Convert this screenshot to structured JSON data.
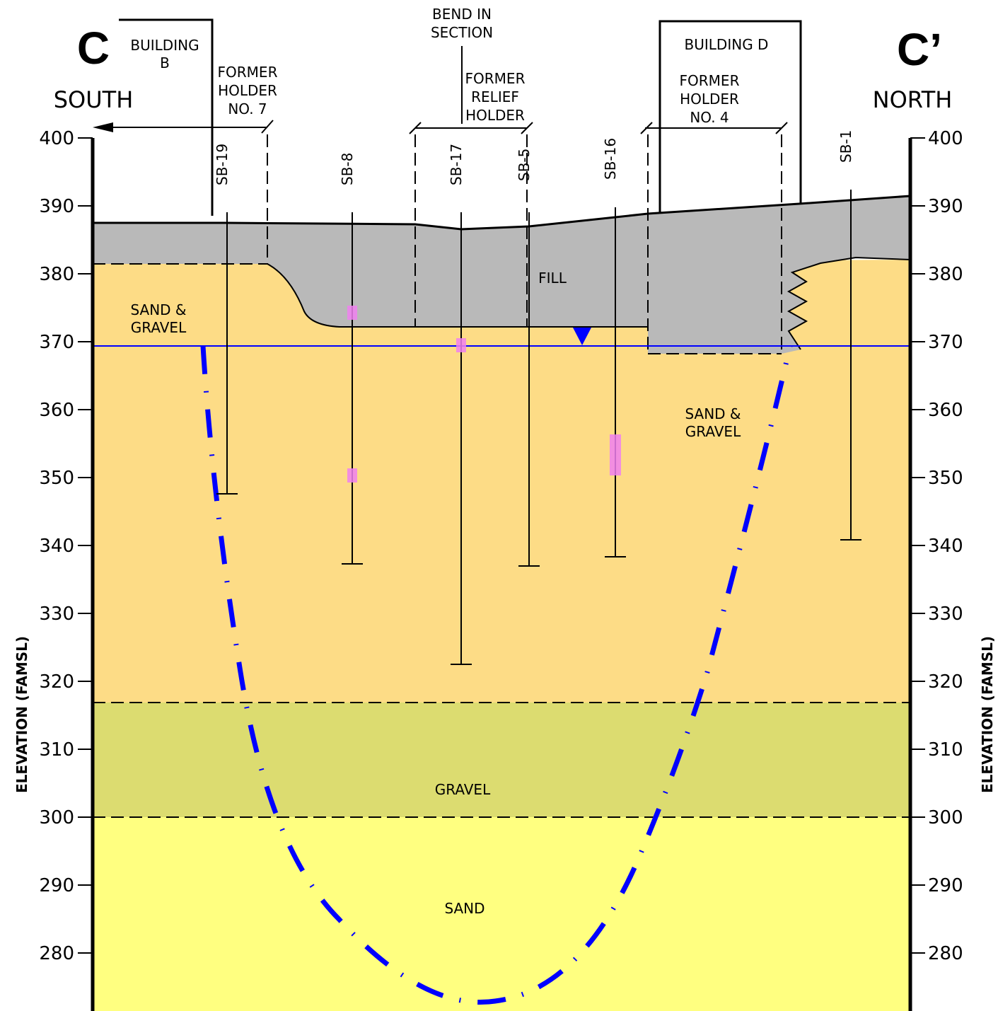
{
  "sections": {
    "left": {
      "letter": "C",
      "direction": "SOUTH"
    },
    "right": {
      "letter": "C’",
      "direction": "NORTH"
    }
  },
  "axis": {
    "label": "ELEVATION (FAMSL)",
    "ticks": [
      400,
      390,
      380,
      370,
      360,
      350,
      340,
      330,
      320,
      310,
      300,
      290,
      280
    ]
  },
  "annotations": {
    "building_b": [
      "BUILDING",
      "B"
    ],
    "former_holder_7": [
      "FORMER",
      "HOLDER",
      "NO. 7"
    ],
    "bend": [
      "BEND IN",
      "SECTION"
    ],
    "relief_holder": [
      "FORMER",
      "RELIEF",
      "HOLDER"
    ],
    "building_d": "BUILDING D",
    "former_holder_4": [
      "FORMER",
      "HOLDER",
      "NO. 4"
    ]
  },
  "layers": {
    "fill": "FILL",
    "sand_gravel": [
      "SAND &",
      "GRAVEL"
    ],
    "gravel": "GRAVEL",
    "sand": "SAND"
  },
  "borings": [
    "SB-19",
    "SB-8",
    "SB-17",
    "SB-5",
    "SB-16",
    "SB-1"
  ]
}
